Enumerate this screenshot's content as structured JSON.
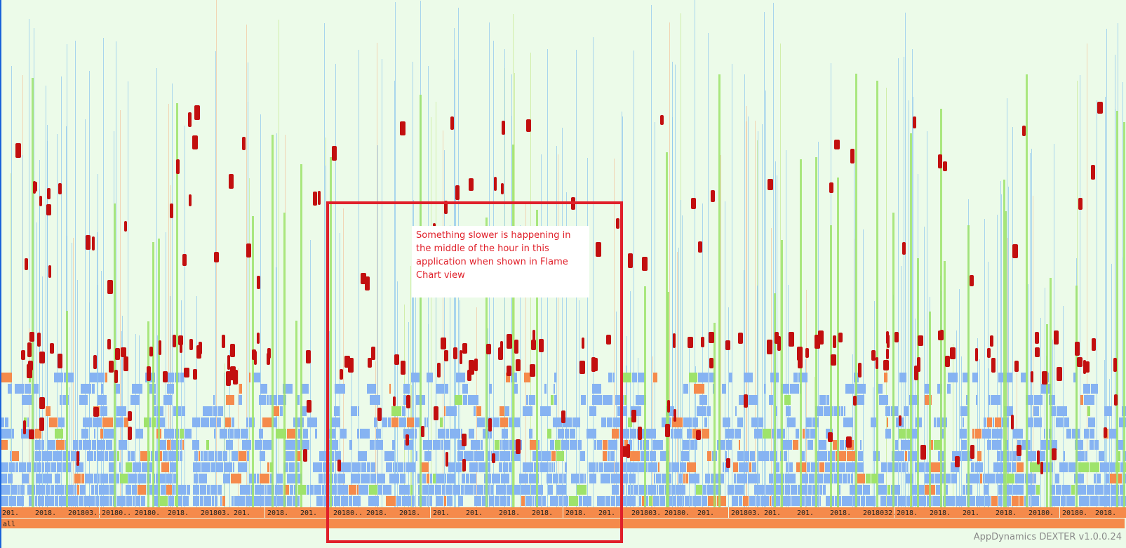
{
  "root_label": "all",
  "frame_labels": [
    "201.",
    "2018.",
    "201803..",
    "20180..",
    "20180.",
    "2018.",
    "201803..",
    "201.",
    "2018.",
    "201.",
    "20180..",
    "2018.",
    "2018.",
    "201.",
    "201.",
    "2018.",
    "2018.",
    "2018.",
    "201.",
    "201803..",
    "20180.",
    "201.",
    "201803..",
    "201.",
    "201.",
    "2018.",
    "2018032..",
    "2018.",
    "2018.",
    "201.",
    "2018.",
    "20180.",
    "20180.",
    "2018."
  ],
  "annotation": {
    "text": "Something slower is happening in the middle of the hour in this application when shown in Flame Chart view"
  },
  "footer": "AppDynamics DEXTER v1.0.0.24",
  "colors": {
    "background": "#ecfbe9",
    "frame_blue": "#86b3f2",
    "frame_orange": "#f58a4b",
    "frame_green": "#9ee36b",
    "frame_red": "#c20f0f",
    "annotation": "#e0202a"
  }
}
